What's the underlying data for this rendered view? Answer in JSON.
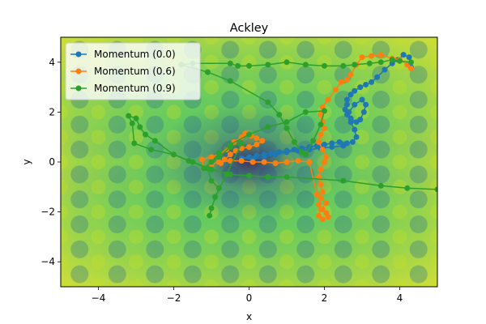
{
  "chart_data": {
    "type": "line",
    "title": "Ackley",
    "xlabel": "x",
    "ylabel": "y",
    "xlim": [
      -5,
      5
    ],
    "ylim": [
      -5,
      5
    ],
    "x_ticks": [
      -4,
      -2,
      0,
      2,
      4
    ],
    "y_ticks": [
      -4,
      -2,
      0,
      2,
      4
    ],
    "x_tick_labels": [
      "−4",
      "−2",
      "0",
      "2",
      "4"
    ],
    "y_tick_labels": [
      "−4",
      "−2",
      "0",
      "2",
      "4"
    ],
    "background": "Ackley function contour (viridis colormap)",
    "grid": false,
    "legend_position": "top-left",
    "series": [
      {
        "name": "Momentum (0.0)",
        "color": "#1f77b4",
        "points": [
          [
            4.3,
            3.8
          ],
          [
            4.25,
            4.2
          ],
          [
            4.1,
            4.3
          ],
          [
            3.95,
            4.1
          ],
          [
            3.8,
            3.95
          ],
          [
            3.6,
            3.7
          ],
          [
            3.4,
            3.4
          ],
          [
            3.25,
            3.2
          ],
          [
            3.1,
            3.1
          ],
          [
            2.95,
            3.0
          ],
          [
            2.8,
            2.85
          ],
          [
            2.7,
            2.7
          ],
          [
            2.6,
            2.5
          ],
          [
            2.6,
            2.3
          ],
          [
            2.55,
            2.1
          ],
          [
            2.6,
            1.9
          ],
          [
            2.7,
            1.75
          ],
          [
            2.85,
            1.6
          ],
          [
            2.95,
            1.7
          ],
          [
            3.05,
            2.0
          ],
          [
            3.1,
            2.3
          ],
          [
            3.0,
            2.5
          ],
          [
            2.8,
            2.3
          ],
          [
            2.65,
            2.0
          ],
          [
            2.7,
            1.6
          ],
          [
            2.8,
            1.3
          ],
          [
            2.85,
            1.0
          ],
          [
            2.75,
            0.8
          ],
          [
            2.6,
            0.75
          ],
          [
            2.4,
            0.8
          ],
          [
            2.2,
            0.75
          ],
          [
            2.0,
            0.7
          ],
          [
            1.8,
            0.65
          ],
          [
            1.6,
            0.6
          ],
          [
            1.4,
            0.55
          ],
          [
            1.2,
            0.5
          ],
          [
            1.0,
            0.45
          ],
          [
            0.8,
            0.4
          ],
          [
            0.6,
            0.35
          ],
          [
            0.4,
            0.3
          ],
          [
            0.2,
            0.25
          ],
          [
            0.0,
            0.2
          ],
          [
            -0.2,
            0.15
          ],
          [
            0.1,
            0.1
          ],
          [
            0.4,
            0.2
          ],
          [
            0.7,
            0.3
          ],
          [
            1.0,
            0.4
          ],
          [
            1.3,
            0.45
          ],
          [
            1.6,
            0.5
          ],
          [
            1.9,
            0.55
          ],
          [
            2.2,
            0.6
          ],
          [
            2.5,
            0.65
          ]
        ]
      },
      {
        "name": "Momentum (0.6)",
        "color": "#ff7f0e",
        "points": [
          [
            4.3,
            3.75
          ],
          [
            4.2,
            3.9
          ],
          [
            4.0,
            4.1
          ],
          [
            3.8,
            4.15
          ],
          [
            3.5,
            4.3
          ],
          [
            3.25,
            4.25
          ],
          [
            3.0,
            4.2
          ],
          [
            2.85,
            3.9
          ],
          [
            2.7,
            3.5
          ],
          [
            2.6,
            3.3
          ],
          [
            2.45,
            3.2
          ],
          [
            2.3,
            2.9
          ],
          [
            2.1,
            2.5
          ],
          [
            1.95,
            2.2
          ],
          [
            1.9,
            1.9
          ],
          [
            1.95,
            1.6
          ],
          [
            2.0,
            1.35
          ],
          [
            1.9,
            1.1
          ],
          [
            1.85,
            0.8
          ],
          [
            1.95,
            0.5
          ],
          [
            2.05,
            0.2
          ],
          [
            2.0,
            0.0
          ],
          [
            1.9,
            -0.3
          ],
          [
            1.85,
            -0.6
          ],
          [
            1.9,
            -0.9
          ],
          [
            1.95,
            -1.2
          ],
          [
            1.9,
            -1.45
          ],
          [
            1.85,
            -1.7
          ],
          [
            1.95,
            -1.9
          ],
          [
            2.05,
            -2.05
          ],
          [
            2.1,
            -2.2
          ],
          [
            1.95,
            -2.3
          ],
          [
            1.85,
            -2.15
          ],
          [
            1.9,
            -1.9
          ],
          [
            2.05,
            -1.65
          ],
          [
            1.8,
            -1.3
          ],
          [
            1.6,
            0.0
          ],
          [
            1.3,
            0.05
          ],
          [
            1.0,
            0.0
          ],
          [
            0.7,
            -0.05
          ],
          [
            0.4,
            0.0
          ],
          [
            0.1,
            0.0
          ],
          [
            -0.2,
            0.05
          ],
          [
            -0.5,
            0.05
          ],
          [
            -0.8,
            0.0
          ],
          [
            -1.0,
            -0.1
          ],
          [
            -1.2,
            -0.25
          ],
          [
            -1.25,
            0.1
          ],
          [
            -1.0,
            0.2
          ],
          [
            -0.8,
            0.3
          ],
          [
            -0.6,
            0.5
          ],
          [
            -0.4,
            0.8
          ],
          [
            -0.2,
            1.0
          ],
          [
            -0.1,
            1.15
          ],
          [
            0.05,
            1.05
          ],
          [
            0.2,
            0.95
          ],
          [
            0.35,
            0.85
          ],
          [
            0.2,
            0.7
          ],
          [
            0.0,
            0.6
          ],
          [
            -0.2,
            0.55
          ],
          [
            -0.35,
            0.45
          ],
          [
            -0.5,
            0.3
          ],
          [
            -0.65,
            0.1
          ],
          [
            -0.75,
            -0.05
          ]
        ]
      },
      {
        "name": "Momentum (0.9)",
        "color": "#2ca02c",
        "points": [
          [
            4.3,
            4.0
          ],
          [
            4.0,
            4.05
          ],
          [
            3.8,
            4.1
          ],
          [
            3.5,
            4.0
          ],
          [
            3.2,
            3.95
          ],
          [
            2.8,
            3.9
          ],
          [
            2.5,
            3.85
          ],
          [
            2.0,
            3.85
          ],
          [
            1.5,
            3.9
          ],
          [
            1.0,
            4.0
          ],
          [
            0.5,
            3.9
          ],
          [
            0.0,
            3.85
          ],
          [
            -0.3,
            3.85
          ],
          [
            -0.5,
            3.95
          ],
          [
            -1.5,
            3.95
          ],
          [
            -1.8,
            3.9
          ],
          [
            -1.1,
            3.6
          ],
          [
            -0.5,
            3.25
          ],
          [
            0.5,
            2.4
          ],
          [
            0.8,
            1.9
          ],
          [
            1.0,
            1.35
          ],
          [
            1.2,
            0.8
          ],
          [
            1.4,
            0.4
          ],
          [
            1.5,
            0.3
          ],
          [
            1.7,
            0.85
          ],
          [
            1.9,
            1.5
          ],
          [
            2.0,
            2.05
          ],
          [
            1.5,
            2.0
          ],
          [
            1.0,
            1.6
          ],
          [
            0.5,
            1.4
          ],
          [
            0.0,
            1.1
          ],
          [
            -0.5,
            0.7
          ],
          [
            -0.8,
            0.35
          ],
          [
            -1.0,
            0.0
          ],
          [
            -1.2,
            -0.25
          ],
          [
            -0.8,
            0.2
          ],
          [
            -0.5,
            0.6
          ],
          [
            -0.2,
            0.75
          ],
          [
            -0.6,
            -0.5
          ],
          [
            -0.9,
            -1.4
          ],
          [
            -1.05,
            -2.15
          ],
          [
            -1.0,
            -1.85
          ],
          [
            -0.8,
            -1.05
          ],
          [
            -1.0,
            -0.75
          ],
          [
            -1.1,
            -0.25
          ],
          [
            -1.6,
            0.05
          ],
          [
            -2.0,
            0.3
          ],
          [
            -2.5,
            0.85
          ],
          [
            -2.75,
            1.1
          ],
          [
            -2.9,
            1.4
          ],
          [
            -3.0,
            1.75
          ],
          [
            -3.2,
            1.85
          ],
          [
            -3.1,
            1.55
          ],
          [
            -3.05,
            0.75
          ],
          [
            -2.6,
            0.5
          ],
          [
            -2.0,
            0.3
          ],
          [
            -1.5,
            0.0
          ],
          [
            -1.0,
            -0.3
          ],
          [
            -0.5,
            -0.5
          ],
          [
            0.0,
            -0.55
          ],
          [
            0.5,
            -0.6
          ],
          [
            1.0,
            -0.6
          ],
          [
            2.5,
            -0.75
          ],
          [
            3.5,
            -0.95
          ],
          [
            4.2,
            -1.05
          ],
          [
            5.0,
            -1.1
          ]
        ]
      }
    ]
  }
}
